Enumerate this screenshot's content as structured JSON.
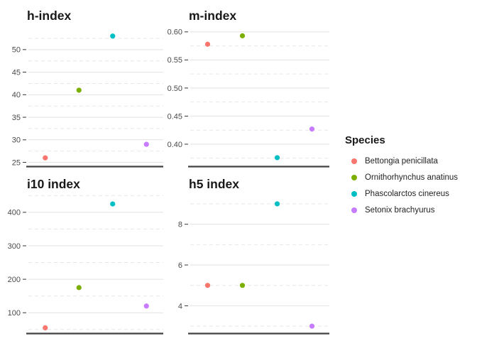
{
  "legend": {
    "title": "Species",
    "items": [
      {
        "label": "Bettongia penicillata",
        "color": "#F8766D"
      },
      {
        "label": "Ornithorhynchus anatinus",
        "color": "#7CAE00"
      },
      {
        "label": "Phascolarctos cinereus",
        "color": "#00BFC4"
      },
      {
        "label": "Setonix brachyurus",
        "color": "#C77CFF"
      }
    ]
  },
  "chart_data": {
    "type": "scatter",
    "layout": "2x2 facets with independent y scales, legend at right, x-axis category labels hidden",
    "x_categories": [
      "Bettongia penicillata",
      "Ornithorhynchus anatinus",
      "Phascolarctos cinereus",
      "Setonix brachyurus"
    ],
    "colors": [
      "#F8766D",
      "#7CAE00",
      "#00BFC4",
      "#C77CFF"
    ],
    "grid": {
      "major": "solid light gray",
      "minor": "dashed light gray",
      "axis_line": "dark bottom axis only"
    },
    "facets": [
      {
        "title": "h-index",
        "ylim": [
          24.3,
          55.8
        ],
        "yticks": [
          25,
          30,
          35,
          40,
          45,
          50
        ],
        "ytick_labels": [
          "25",
          "30",
          "35",
          "40",
          "45",
          "50"
        ],
        "yminor": [
          27.5,
          32.5,
          37.5,
          42.5,
          47.5,
          52.5
        ],
        "values": [
          26,
          41,
          53,
          29
        ]
      },
      {
        "title": "m-index",
        "ylim": [
          0.362,
          0.615
        ],
        "yticks": [
          0.4,
          0.45,
          0.5,
          0.55,
          0.6
        ],
        "ytick_labels": [
          "0.40",
          "0.45",
          "0.50",
          "0.55",
          "0.60"
        ],
        "yminor": [
          0.375,
          0.425,
          0.475,
          0.525,
          0.575
        ],
        "values": [
          0.578,
          0.593,
          0.376,
          0.427
        ]
      },
      {
        "title": "i10 index",
        "ylim": [
          41,
          457
        ],
        "yticks": [
          100,
          200,
          300,
          400
        ],
        "ytick_labels": [
          "100",
          "200",
          "300",
          "400"
        ],
        "yminor": [
          50,
          150,
          250,
          350,
          450
        ],
        "values": [
          55,
          175,
          425,
          120
        ]
      },
      {
        "title": "h5 index",
        "ylim": [
          2.69,
          9.52
        ],
        "yticks": [
          4,
          6,
          8
        ],
        "ytick_labels": [
          "4",
          "6",
          "8"
        ],
        "yminor": [
          3,
          5,
          7,
          9
        ],
        "values": [
          5,
          5,
          9,
          3
        ]
      }
    ]
  }
}
